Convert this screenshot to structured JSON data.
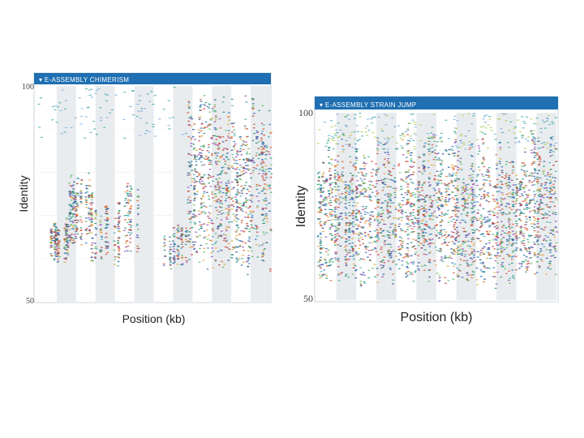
{
  "chart_data": [
    {
      "type": "scatter",
      "title": "▾ E-ASSEMBLY CHIMERISM",
      "xlabel": "Position (kb)",
      "ylabel": "Identity",
      "ylim": [
        50,
        100
      ],
      "yticks": [
        "100",
        "50"
      ],
      "grid": true,
      "point_colors": [
        "#1f4e9c",
        "#2a6fb8",
        "#3aa3a8",
        "#5cb85c",
        "#e0a030",
        "#d9532c",
        "#8e44ad",
        "#c0392b",
        "#1a8f6e"
      ],
      "regions": [
        {
          "x_start": 0.04,
          "x_end": 0.13,
          "y_min": 59,
          "y_max": 71,
          "density": 0.55
        },
        {
          "x_start": 0.13,
          "x_end": 0.23,
          "y_min": 62,
          "y_max": 80,
          "density": 0.6
        },
        {
          "x_start": 0.23,
          "x_end": 0.37,
          "y_min": 58,
          "y_max": 75,
          "density": 0.45
        },
        {
          "x_start": 0.37,
          "x_end": 0.45,
          "y_min": 60,
          "y_max": 79,
          "density": 0.4
        },
        {
          "x_start": 0.54,
          "x_end": 0.64,
          "y_min": 57,
          "y_max": 69,
          "density": 0.55
        },
        {
          "x_start": 0.64,
          "x_end": 1.0,
          "y_min": 56,
          "y_max": 100,
          "density": 1.0
        }
      ],
      "sparse_top": {
        "x_start": 0.0,
        "x_end": 0.64,
        "y_min": 88,
        "y_max": 100
      }
    },
    {
      "type": "scatter",
      "title": "▾ E-ASSEMBLY STRAIN JUMP",
      "xlabel": "Position (kb)",
      "ylabel": "Identity",
      "ylim": [
        50,
        100
      ],
      "yticks": [
        "100",
        "50"
      ],
      "grid": true,
      "point_colors": [
        "#1f4e9c",
        "#2a6fb8",
        "#3aa3a8",
        "#5cb85c",
        "#e0a030",
        "#d9532c",
        "#8e44ad",
        "#c0392b",
        "#1a8f6e"
      ],
      "regions": [
        {
          "x_start": 0.0,
          "x_end": 1.0,
          "y_min": 53,
          "y_max": 96,
          "density": 1.0
        }
      ],
      "sparse_top": {
        "x_start": 0.0,
        "x_end": 1.0,
        "y_min": 90,
        "y_max": 100
      }
    }
  ]
}
